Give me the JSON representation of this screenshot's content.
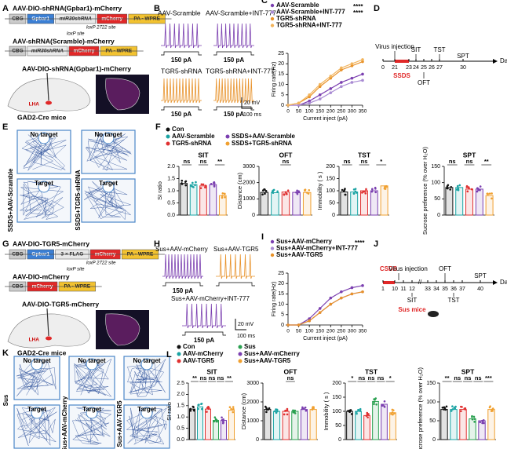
{
  "figure": {
    "A": {
      "letter": "A",
      "title1": "AAV-DIO-shRNA(Gpbar1)-mCherry",
      "seg1": [
        "CBG",
        "Gpbar1",
        "miR30shRNA",
        "mCherry",
        "PA - WPRE"
      ],
      "site1": "loxP 2722 site",
      "site2": "loxP site",
      "title2": "AAV-shRNA(Scramble)-mCherry",
      "seg2": [
        "CBG",
        "miR30shRNA",
        "mCherry",
        "PA - WPRE"
      ],
      "inject": "AAV-DIO-shRNA(Gpbar1)-mCherry",
      "region": "LHA",
      "mouse": "GAD2-Cre mice"
    },
    "B": {
      "letter": "B",
      "traces": [
        "AAV-Scramble",
        "AAV-Scramble+INT-777",
        "TGR5-shRNA",
        "TGR5-shRNA+INT-777"
      ],
      "current": "150 pA",
      "scale_v": "20 mV",
      "scale_t": "100 ms"
    },
    "C": {
      "letter": "C",
      "type": "line",
      "ylabel": "Firing rate(Hz)",
      "xlabel": "Current inject (pA)",
      "x": [
        0,
        50,
        100,
        150,
        200,
        250,
        300,
        350
      ],
      "xlim": [
        0,
        350
      ],
      "xticks": [
        0,
        50,
        100,
        150,
        200,
        250,
        300,
        350
      ],
      "ylim": [
        0,
        25
      ],
      "yticks": [
        0,
        5,
        10,
        15,
        20,
        25
      ],
      "series": [
        {
          "name": "AAV-Scramble",
          "color": "#7b3fb0",
          "values": [
            0,
            0,
            2,
            5,
            8,
            11,
            13,
            15
          ]
        },
        {
          "name": "AAV-Scramble+INT-777",
          "color": "#a98bd3",
          "values": [
            0,
            0,
            1,
            3,
            6,
            9,
            11,
            12
          ]
        },
        {
          "name": "TGR5-shRNA",
          "color": "#e8922a",
          "values": [
            0,
            1,
            4,
            9,
            13,
            17,
            19,
            21
          ]
        },
        {
          "name": "TGR5-shRNA+INT-777",
          "color": "#f2b45c",
          "values": [
            0,
            1,
            5,
            10,
            14,
            18,
            20,
            22
          ]
        }
      ],
      "sig": [
        "****",
        "****"
      ]
    },
    "D": {
      "letter": "D",
      "events": [
        "Virus injection",
        "SIT",
        "TST",
        "SPT",
        "SSDS",
        "OFT",
        "Day"
      ],
      "days": [
        "0",
        "21",
        "23",
        "24",
        "25",
        "26",
        "27",
        "30"
      ]
    },
    "E": {
      "letter": "E",
      "cols": [
        "No target",
        "No target"
      ],
      "target": "Target",
      "rows": [
        "SSDS+AAV-Scramble",
        "SSDS+TGR5-shRNA"
      ]
    },
    "F": {
      "letter": "F",
      "groups": [
        "Con",
        "AAV-Scramble",
        "TGR5-shRNA",
        "SSDS+AAV-Scramble",
        "SSDS+TGR5-shRNA"
      ],
      "colors": [
        "#111111",
        "#1aa3a3",
        "#e03030",
        "#7b3fb0",
        "#f0a030"
      ],
      "charts": [
        {
          "title": "SIT",
          "ylabel": "SI ratio",
          "ylim": [
            0,
            2
          ],
          "yticks": [
            {
              "value": 0,
              "label": "0.0"
            },
            0.5,
            {
              "value": 1,
              "label": "1.0"
            },
            1.5,
            {
              "value": 2,
              "label": "2.0"
            }
          ],
          "values": [
            1.3,
            1.25,
            1.2,
            1.25,
            0.8
          ],
          "sig": [
            "ns",
            "ns",
            "**"
          ]
        },
        {
          "title": "OFT",
          "ylabel": "Distance (cm)",
          "ylim": [
            0,
            3000
          ],
          "yticks": [
            0,
            1000,
            2000,
            3000
          ],
          "values": [
            1400,
            1380,
            1420,
            1400,
            1390
          ],
          "sig": [
            "ns"
          ]
        },
        {
          "title": "TST",
          "ylabel": "Immobility ( s )",
          "ylim": [
            0,
            200
          ],
          "yticks": [
            0,
            50,
            100,
            150,
            200
          ],
          "values": [
            95,
            95,
            100,
            100,
            120
          ],
          "sig": [
            "ns",
            "ns",
            "*"
          ]
        },
        {
          "title": "SPT",
          "ylabel": "Sucrose preference (% over H₂O)",
          "ylim": [
            0,
            150
          ],
          "yticks": [
            0,
            50,
            100,
            150
          ],
          "values": [
            85,
            85,
            80,
            80,
            60
          ],
          "sig": [
            "ns",
            "ns",
            "**"
          ]
        }
      ]
    },
    "G": {
      "letter": "G",
      "title1": "AAV-DIO-TGR5-mCherry",
      "seg1": [
        "CBG",
        "Gpbar1",
        "3 × FLAG",
        "mCherry",
        "PA - WPRE"
      ],
      "site1": "loxP 2722 site",
      "site2": "loxP site",
      "title2": "AAV-DIO-mCherry",
      "seg2": [
        "CBG",
        "mCherry",
        "PA - WPRE"
      ],
      "inject": "AAV-DIO-TGR5-mCherry",
      "region": "LHA",
      "mouse": "GAD2-Cre mice"
    },
    "H": {
      "letter": "H",
      "traces": [
        "Sus+AAV-mCherry",
        "Sus+AAV-TGR5",
        "Sus+AAV-mCherry+INT-777"
      ],
      "current": "150 pA",
      "scale_v": "20 mV",
      "scale_t": "100 ms"
    },
    "I": {
      "letter": "I",
      "type": "line",
      "ylabel": "Firing rate(Hz)",
      "xlabel": "Current inject (pA)",
      "x": [
        0,
        50,
        100,
        150,
        200,
        250,
        300,
        350
      ],
      "xlim": [
        0,
        350
      ],
      "xticks": [
        0,
        50,
        100,
        150,
        200,
        250,
        300,
        350
      ],
      "ylim": [
        0,
        25
      ],
      "yticks": [
        0,
        5,
        10,
        15,
        20,
        25
      ],
      "series": [
        {
          "name": "Sus+AAV-mCherry",
          "color": "#7b3fb0",
          "values": [
            0,
            0,
            3,
            8,
            13,
            16,
            18,
            19
          ]
        },
        {
          "name": "Sus+AAV-mCherry+INT-777",
          "color": "#a98bd3",
          "values": [
            0,
            0,
            2,
            6,
            10,
            13,
            15,
            16
          ]
        },
        {
          "name": "Sus+AAV-TGR5",
          "color": "#e8922a",
          "values": [
            0,
            0,
            2,
            6,
            10,
            13,
            15,
            16
          ]
        }
      ],
      "sig": [
        "****"
      ]
    },
    "J": {
      "letter": "J",
      "events": [
        "CSDS",
        "Virus injection",
        "OFT",
        "SIT",
        "TST",
        "SPT",
        "Day",
        "Sus mice"
      ],
      "days": [
        "1",
        "10",
        "11",
        "12",
        "33",
        "34",
        "35",
        "36",
        "37",
        "40"
      ]
    },
    "K": {
      "letter": "K",
      "cols": [
        "No target",
        "No target",
        "No target"
      ],
      "target": "Target",
      "rows": [
        "Sus",
        "Sus+AAV-mCherry",
        "Sus+AAV-TGR5"
      ]
    },
    "L": {
      "letter": "L",
      "groups": [
        "Con",
        "AAV-mCherry",
        "AAV-TGR5",
        "Sus",
        "Sus+AAV-mCherry",
        "Sus+AAV-TGR5"
      ],
      "colors": [
        "#111111",
        "#1aa3a3",
        "#e03030",
        "#2aa050",
        "#7b3fb0",
        "#f0a030"
      ],
      "charts": [
        {
          "title": "SIT",
          "ylabel": "SI ratio",
          "ylim": [
            0,
            2.5
          ],
          "yticks": [
            {
              "value": 0,
              "label": "0.0"
            },
            0.5,
            {
              "value": 1,
              "label": "1.0"
            },
            1.5,
            {
              "value": 2,
              "label": "2.0"
            },
            2.5
          ],
          "values": [
            1.35,
            1.45,
            1.35,
            0.85,
            0.85,
            1.3
          ],
          "sig": [
            "**",
            "ns",
            "ns",
            "ns",
            "**"
          ]
        },
        {
          "title": "OFT",
          "ylabel": "Distance (cm)",
          "ylim": [
            0,
            3000
          ],
          "yticks": [
            0,
            1000,
            2000,
            3000
          ],
          "values": [
            1600,
            1500,
            1500,
            1500,
            1600,
            1600
          ],
          "sig": [
            "ns"
          ]
        },
        {
          "title": "TST",
          "ylabel": "Immobility ( s )",
          "ylim": [
            0,
            200
          ],
          "yticks": [
            0,
            50,
            100,
            150,
            200
          ],
          "values": [
            100,
            100,
            85,
            135,
            125,
            95
          ],
          "sig": [
            "*",
            "ns",
            "ns",
            "ns",
            "*"
          ]
        },
        {
          "title": "SPT",
          "ylabel": "Sucrose preference (% over H₂O)",
          "ylim": [
            0,
            150
          ],
          "yticks": [
            0,
            50,
            100,
            150
          ],
          "values": [
            80,
            80,
            80,
            55,
            50,
            80
          ],
          "sig": [
            "**",
            "ns",
            "ns",
            "ns",
            "***"
          ]
        }
      ]
    }
  }
}
